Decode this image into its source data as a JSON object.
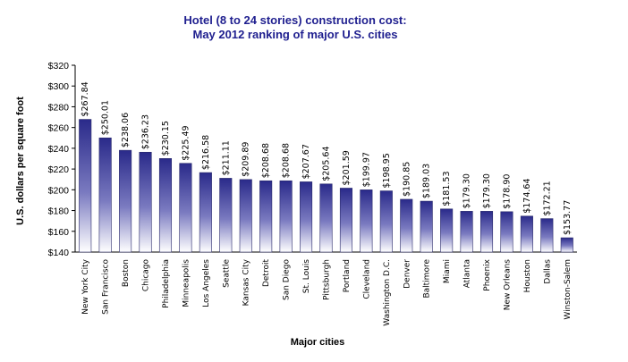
{
  "chart_data": {
    "type": "bar",
    "title": "Hotel (8 to 24 stories) construction cost:",
    "subtitle": "May 2012 ranking of major U.S. cities",
    "xlabel": "Major cities",
    "ylabel": "U.S. dollars per square foot",
    "ylim": [
      140,
      320
    ],
    "yticks": [
      "$140",
      "$160",
      "$180",
      "$200",
      "$220",
      "$240",
      "$260",
      "$280",
      "$300",
      "$320"
    ],
    "categories": [
      "New York City",
      "San Francisco",
      "Boston",
      "Chicago",
      "Philadelphia",
      "Minneapolis",
      "Los Angeles",
      "Seattle",
      "Kansas City",
      "Detroit",
      "San Diego",
      "St. Louis",
      "Pittsburgh",
      "Portland",
      "Cleveland",
      "Washington D.C.",
      "Denver",
      "Baltimore",
      "Miami",
      "Atlanta",
      "Phoenix",
      "New Orleans",
      "Houston",
      "Dallas",
      "Winston-Salem"
    ],
    "values": [
      267.84,
      250.01,
      238.06,
      236.23,
      230.15,
      225.49,
      216.58,
      211.11,
      209.89,
      208.68,
      208.68,
      207.67,
      205.64,
      201.59,
      199.97,
      198.95,
      190.85,
      189.03,
      181.53,
      179.3,
      179.3,
      178.9,
      174.64,
      172.21,
      153.77
    ],
    "data_labels": [
      "$267.84",
      "$250.01",
      "$238.06",
      "$236.23",
      "$230.15",
      "$225.49",
      "$216.58",
      "$211.11",
      "$209.89",
      "$208.68",
      "$208.68",
      "$207.67",
      "$205.64",
      "$201.59",
      "$199.97",
      "$198.95",
      "$190.85",
      "$189.03",
      "$181.53",
      "$179.30",
      "$179.30",
      "$178.90",
      "$174.64",
      "$172.21",
      "$153.77"
    ],
    "grid": false,
    "legend": "none",
    "colors": {
      "bar_top": "#2a2a8a",
      "bar_mid": "#6a6ab8",
      "bar_bottom": "#ffffff",
      "title": "#1f1f8f"
    }
  }
}
